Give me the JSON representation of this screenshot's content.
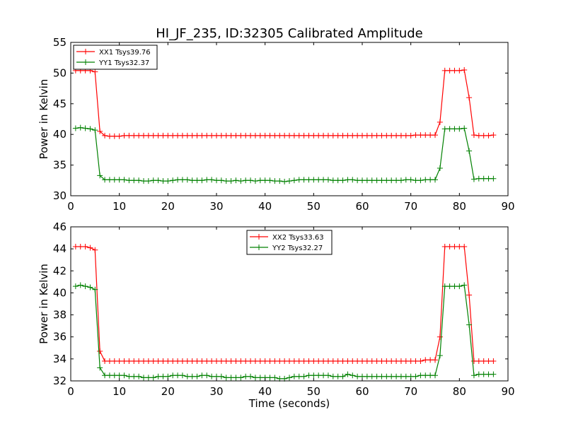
{
  "figure": {
    "title": "HI_JF_235, ID:32305 Calibrated Amplitude",
    "xlabel": "Time (seconds)"
  },
  "chart_data": [
    {
      "type": "line",
      "title": "HI_JF_235, ID:32305 Calibrated Amplitude",
      "xlabel": "",
      "ylabel": "Power in Kelvin",
      "xlim": [
        0,
        90
      ],
      "ylim": [
        30,
        55
      ],
      "xticks": [
        "0",
        "10",
        "20",
        "30",
        "40",
        "50",
        "60",
        "70",
        "80",
        "90"
      ],
      "yticks": [
        "30",
        "35",
        "40",
        "45",
        "50",
        "55"
      ],
      "grid": false,
      "legend_position": "top-left",
      "x": [
        1,
        2,
        3,
        4,
        5,
        6,
        7,
        8,
        9,
        10,
        11,
        12,
        13,
        14,
        15,
        16,
        17,
        18,
        19,
        20,
        21,
        22,
        23,
        24,
        25,
        26,
        27,
        28,
        29,
        30,
        31,
        32,
        33,
        34,
        35,
        36,
        37,
        38,
        39,
        40,
        41,
        42,
        43,
        44,
        45,
        46,
        47,
        48,
        49,
        50,
        51,
        52,
        53,
        54,
        55,
        56,
        57,
        58,
        59,
        60,
        61,
        62,
        63,
        64,
        65,
        66,
        67,
        68,
        69,
        70,
        71,
        72,
        73,
        74,
        75,
        76,
        77,
        78,
        79,
        80,
        81,
        82,
        83,
        84,
        85,
        86,
        87
      ],
      "series": [
        {
          "name": "XX1 Tsys39.76",
          "color": "#ff0000",
          "values": [
            50.4,
            50.4,
            50.4,
            50.4,
            50.2,
            40.5,
            39.8,
            39.7,
            39.7,
            39.7,
            39.8,
            39.8,
            39.8,
            39.8,
            39.8,
            39.8,
            39.8,
            39.8,
            39.8,
            39.8,
            39.8,
            39.8,
            39.8,
            39.8,
            39.8,
            39.8,
            39.8,
            39.8,
            39.8,
            39.8,
            39.8,
            39.8,
            39.8,
            39.8,
            39.8,
            39.8,
            39.8,
            39.8,
            39.8,
            39.8,
            39.8,
            39.8,
            39.8,
            39.8,
            39.8,
            39.8,
            39.8,
            39.8,
            39.8,
            39.8,
            39.8,
            39.8,
            39.8,
            39.8,
            39.8,
            39.8,
            39.8,
            39.8,
            39.8,
            39.8,
            39.8,
            39.8,
            39.8,
            39.8,
            39.8,
            39.8,
            39.8,
            39.8,
            39.8,
            39.8,
            39.9,
            39.9,
            39.9,
            39.9,
            39.9,
            42.0,
            50.4,
            50.4,
            50.4,
            50.4,
            50.5,
            46.0,
            39.9,
            39.8,
            39.8,
            39.8,
            39.9
          ]
        },
        {
          "name": "YY1 Tsys32.37",
          "color": "#008000",
          "values": [
            41.0,
            41.1,
            41.0,
            40.9,
            40.7,
            33.3,
            32.6,
            32.6,
            32.6,
            32.6,
            32.6,
            32.5,
            32.5,
            32.5,
            32.4,
            32.4,
            32.5,
            32.5,
            32.4,
            32.4,
            32.5,
            32.6,
            32.6,
            32.6,
            32.5,
            32.5,
            32.5,
            32.6,
            32.6,
            32.5,
            32.5,
            32.4,
            32.4,
            32.5,
            32.4,
            32.5,
            32.5,
            32.4,
            32.5,
            32.5,
            32.5,
            32.4,
            32.4,
            32.3,
            32.4,
            32.5,
            32.6,
            32.6,
            32.6,
            32.6,
            32.6,
            32.6,
            32.6,
            32.5,
            32.5,
            32.5,
            32.6,
            32.6,
            32.5,
            32.5,
            32.5,
            32.5,
            32.5,
            32.5,
            32.5,
            32.5,
            32.5,
            32.5,
            32.6,
            32.6,
            32.5,
            32.5,
            32.6,
            32.6,
            32.6,
            34.5,
            40.9,
            40.9,
            40.9,
            40.9,
            41.0,
            37.3,
            32.7,
            32.8,
            32.8,
            32.8,
            32.8
          ]
        }
      ]
    },
    {
      "type": "line",
      "title": "",
      "xlabel": "Time (seconds)",
      "ylabel": "Power in Kelvin",
      "xlim": [
        0,
        90
      ],
      "ylim": [
        32,
        46
      ],
      "xticks": [
        "0",
        "10",
        "20",
        "30",
        "40",
        "50",
        "60",
        "70",
        "80",
        "90"
      ],
      "yticks": [
        "32",
        "34",
        "36",
        "38",
        "40",
        "42",
        "44",
        "46"
      ],
      "grid": false,
      "legend_position": "top-center",
      "x": [
        1,
        2,
        3,
        4,
        5,
        6,
        7,
        8,
        9,
        10,
        11,
        12,
        13,
        14,
        15,
        16,
        17,
        18,
        19,
        20,
        21,
        22,
        23,
        24,
        25,
        26,
        27,
        28,
        29,
        30,
        31,
        32,
        33,
        34,
        35,
        36,
        37,
        38,
        39,
        40,
        41,
        42,
        43,
        44,
        45,
        46,
        47,
        48,
        49,
        50,
        51,
        52,
        53,
        54,
        55,
        56,
        57,
        58,
        59,
        60,
        61,
        62,
        63,
        64,
        65,
        66,
        67,
        68,
        69,
        70,
        71,
        72,
        73,
        74,
        75,
        76,
        77,
        78,
        79,
        80,
        81,
        82,
        83,
        84,
        85,
        86,
        87
      ],
      "series": [
        {
          "name": "XX2 Tsys33.63",
          "color": "#ff0000",
          "values": [
            44.2,
            44.2,
            44.2,
            44.1,
            43.9,
            34.7,
            33.8,
            33.8,
            33.8,
            33.8,
            33.8,
            33.8,
            33.8,
            33.8,
            33.8,
            33.8,
            33.8,
            33.8,
            33.8,
            33.8,
            33.8,
            33.8,
            33.8,
            33.8,
            33.8,
            33.8,
            33.8,
            33.8,
            33.8,
            33.8,
            33.8,
            33.8,
            33.8,
            33.8,
            33.8,
            33.8,
            33.8,
            33.8,
            33.8,
            33.8,
            33.8,
            33.8,
            33.8,
            33.8,
            33.8,
            33.8,
            33.8,
            33.8,
            33.8,
            33.8,
            33.8,
            33.8,
            33.8,
            33.8,
            33.8,
            33.8,
            33.8,
            33.8,
            33.8,
            33.8,
            33.8,
            33.8,
            33.8,
            33.8,
            33.8,
            33.8,
            33.8,
            33.8,
            33.8,
            33.8,
            33.8,
            33.8,
            33.9,
            33.9,
            33.9,
            36.0,
            44.2,
            44.2,
            44.2,
            44.2,
            44.2,
            39.8,
            33.8,
            33.8,
            33.8,
            33.8,
            33.8
          ]
        },
        {
          "name": "YY2 Tsys32.27",
          "color": "#008000",
          "values": [
            40.6,
            40.7,
            40.6,
            40.5,
            40.3,
            33.2,
            32.5,
            32.5,
            32.5,
            32.5,
            32.5,
            32.4,
            32.4,
            32.4,
            32.3,
            32.3,
            32.3,
            32.4,
            32.4,
            32.4,
            32.5,
            32.5,
            32.5,
            32.4,
            32.4,
            32.4,
            32.5,
            32.5,
            32.4,
            32.4,
            32.4,
            32.3,
            32.3,
            32.3,
            32.3,
            32.4,
            32.4,
            32.3,
            32.3,
            32.3,
            32.3,
            32.3,
            32.2,
            32.2,
            32.3,
            32.4,
            32.4,
            32.4,
            32.5,
            32.5,
            32.5,
            32.5,
            32.5,
            32.4,
            32.4,
            32.4,
            32.6,
            32.5,
            32.4,
            32.4,
            32.4,
            32.4,
            32.4,
            32.4,
            32.4,
            32.4,
            32.4,
            32.4,
            32.4,
            32.4,
            32.4,
            32.5,
            32.5,
            32.5,
            32.5,
            34.3,
            40.6,
            40.6,
            40.6,
            40.6,
            40.7,
            37.1,
            32.5,
            32.6,
            32.6,
            32.6,
            32.6
          ]
        }
      ]
    }
  ]
}
